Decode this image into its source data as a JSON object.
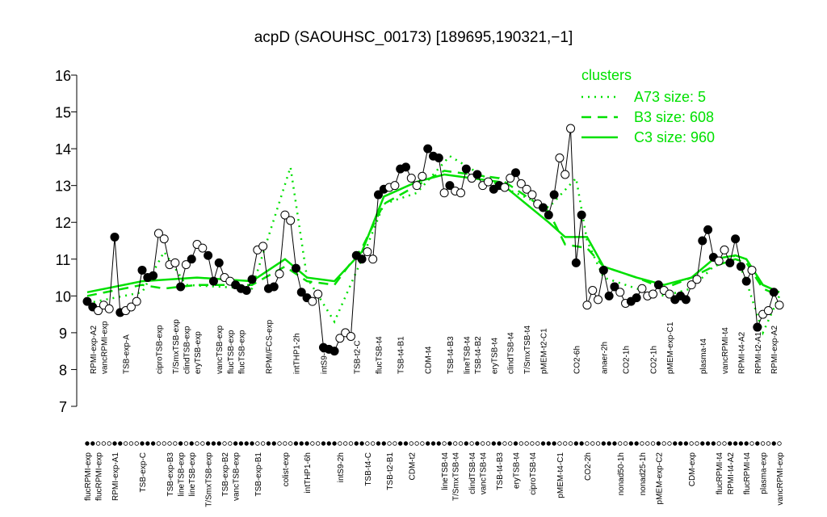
{
  "chart_data": {
    "type": "line",
    "title": "acpD (SAOUHSC_00173) [189695,190321,−1]",
    "categories": [
      "flucRPMI-exp",
      "RPMI-exp-A2",
      "flucRPMI-exp",
      "vancRPMI-exp",
      null,
      "RPMI-exp-A1",
      null,
      "TSB-exp-A",
      null,
      null,
      "TSB-exp-C",
      null,
      null,
      "ciproTSB-exp",
      null,
      "TSB-exp-B3",
      "T/SmxTSB-exp",
      "lineTSB-exp",
      "clindTSB-exp",
      "lineTSB-exp",
      "eryTSB-exp",
      null,
      "T/SmxTSB-exp",
      null,
      "vancTSB-exp",
      "TSB-exp-B2",
      "flucTSB-exp",
      "vancTSB-exp",
      "flucTSB-exp",
      null,
      null,
      "TSB-exp-B1",
      null,
      "RPMI/FCS-exp",
      null,
      null,
      "colist-exp",
      null,
      "intTHP1-2h",
      null,
      "intTHP1-6h",
      null,
      null,
      "intS9-6h",
      null,
      null,
      "intS9-2h",
      null,
      null,
      "TSB-t2-C",
      null,
      "TSB-t4-C",
      null,
      "flucTSB-t4",
      null,
      "TSB-t2-B1",
      null,
      "TSB-t4-B1",
      null,
      "CDM-t2",
      null,
      null,
      "CDM-t4",
      null,
      null,
      "lineTSB-t4",
      "TSB-t4-B3",
      "T/SmxTSB-t4",
      null,
      "lineTSB-t4",
      "clindTSB-t4",
      "TSB-t4-B2",
      "vancTSB-t4",
      null,
      "eryTSB-t4",
      "TSB-t4-B3",
      null,
      "clindTSB-t4",
      "eryTSB-t4",
      null,
      "T/SmxTSB-t4",
      "ciproTSB-t4",
      null,
      "pMEM-t2-C1",
      null,
      null,
      "pMEM-t4-C1",
      null,
      null,
      "CO2-6h",
      null,
      "CO2-2h",
      null,
      null,
      "anaer-2h",
      null,
      null,
      "nonad50-1h",
      "CO2-1h",
      null,
      null,
      "nonad25-1h",
      null,
      "CO2-1h",
      "pMEM-exp-C2",
      null,
      "pMEM-exp-C1",
      null,
      null,
      null,
      "CDM-exp",
      null,
      "plasma-t4",
      null,
      null,
      "flucRPMI-t4",
      "vancRPMI-t4",
      "RPMI-t4-A2",
      null,
      "RPMI-t4-A2",
      "flucRPMI-t4",
      null,
      "RPMI-t2-A1",
      "plasma-exp",
      null,
      "RPMI-exp-A2",
      "vancRPMI-exp"
    ],
    "values": [
      9.85,
      9.7,
      9.6,
      9.75,
      9.65,
      11.6,
      9.55,
      9.6,
      9.7,
      9.85,
      10.7,
      10.5,
      10.55,
      11.7,
      11.55,
      10.85,
      10.9,
      10.25,
      10.85,
      11.0,
      11.4,
      11.3,
      11.1,
      10.4,
      10.9,
      10.5,
      10.4,
      10.3,
      10.2,
      10.15,
      10.45,
      11.25,
      11.35,
      10.2,
      10.25,
      10.6,
      12.2,
      12.05,
      10.75,
      10.1,
      9.95,
      9.85,
      10.05,
      8.6,
      8.55,
      8.5,
      8.85,
      9.0,
      8.9,
      11.1,
      11.0,
      11.2,
      11.0,
      12.75,
      12.9,
      12.95,
      13.0,
      13.45,
      13.5,
      13.2,
      13.0,
      13.25,
      14.0,
      13.8,
      13.75,
      12.8,
      13.0,
      12.85,
      12.8,
      13.45,
      13.2,
      13.3,
      13.0,
      13.1,
      12.9,
      13.0,
      12.95,
      13.2,
      13.35,
      13.05,
      12.9,
      12.75,
      12.5,
      12.4,
      12.2,
      12.75,
      13.75,
      13.3,
      14.55,
      10.9,
      12.2,
      9.75,
      10.15,
      9.9,
      10.7,
      10.0,
      10.25,
      10.1,
      9.8,
      9.85,
      9.95,
      10.2,
      10.0,
      10.05,
      10.3,
      10.15,
      10.05,
      9.9,
      10.0,
      9.9,
      10.3,
      10.45,
      11.5,
      11.8,
      11.05,
      10.95,
      11.25,
      10.9,
      11.55,
      10.8,
      10.4,
      10.7,
      9.15,
      9.5,
      9.6,
      10.1,
      9.75
    ],
    "filled": [
      true,
      true,
      false,
      false,
      false,
      true,
      true,
      false,
      false,
      false,
      true,
      true,
      true,
      false,
      false,
      false,
      false,
      true,
      false,
      true,
      false,
      false,
      true,
      true,
      true,
      false,
      false,
      true,
      true,
      true,
      true,
      false,
      false,
      true,
      true,
      false,
      false,
      false,
      true,
      true,
      true,
      false,
      false,
      true,
      true,
      true,
      false,
      false,
      false,
      true,
      true,
      false,
      false,
      true,
      true,
      false,
      false,
      true,
      true,
      false,
      false,
      false,
      true,
      true,
      true,
      false,
      true,
      false,
      false,
      true,
      false,
      true,
      false,
      false,
      true,
      true,
      false,
      false,
      true,
      false,
      false,
      false,
      false,
      true,
      true,
      true,
      false,
      false,
      false,
      true,
      true,
      false,
      false,
      false,
      true,
      true,
      true,
      false,
      false,
      true,
      true,
      false,
      false,
      false,
      true,
      false,
      false,
      true,
      true,
      true,
      false,
      false,
      true,
      true,
      true,
      false,
      false,
      true,
      true,
      true,
      true,
      false,
      true,
      false,
      false,
      true,
      false
    ],
    "ylim": [
      7,
      16
    ],
    "yticks": [
      7,
      8,
      9,
      10,
      11,
      12,
      13,
      14,
      15,
      16
    ],
    "legend_title": "clusters",
    "series": [
      {
        "name": "A73 size: 5",
        "color": "#00e000",
        "dash": "dotted",
        "x": [
          0,
          10,
          14,
          18,
          30,
          37,
          40,
          45,
          50,
          54,
          60,
          66,
          75,
          84,
          89,
          91,
          94,
          100,
          105,
          110,
          114,
          118,
          120,
          123,
          126
        ],
        "values": [
          9.8,
          10.1,
          11.2,
          10.3,
          10.2,
          13.5,
          10.5,
          9.3,
          11.0,
          12.5,
          12.8,
          13.8,
          13.0,
          12.4,
          13.2,
          11.5,
          10.5,
          10.2,
          10.0,
          10.2,
          10.8,
          11.1,
          10.4,
          9.0,
          10.0
        ]
      },
      {
        "name": "B3 size: 608",
        "color": "#00e000",
        "dash": "dashed",
        "x": [
          0,
          10,
          14,
          20,
          30,
          36,
          40,
          45,
          50,
          54,
          60,
          65,
          75,
          84,
          87,
          91,
          94,
          100,
          105,
          110,
          114,
          118,
          120,
          123,
          126
        ],
        "values": [
          10.0,
          10.3,
          10.2,
          10.3,
          10.3,
          10.8,
          10.4,
          10.3,
          11.3,
          12.5,
          13.0,
          13.4,
          13.2,
          12.3,
          11.4,
          11.3,
          10.8,
          10.5,
          10.2,
          10.5,
          10.8,
          11.0,
          10.9,
          10.2,
          10.0
        ]
      },
      {
        "name": "C3 size: 960",
        "color": "#00e000",
        "dash": "solid",
        "x": [
          0,
          10,
          20,
          30,
          36,
          40,
          45,
          50,
          54,
          60,
          65,
          75,
          84,
          87,
          91,
          94,
          100,
          105,
          110,
          114,
          118,
          120,
          123,
          126
        ],
        "values": [
          10.1,
          10.4,
          10.5,
          10.4,
          11.0,
          10.5,
          10.4,
          11.2,
          12.7,
          13.1,
          13.3,
          13.1,
          12.0,
          11.6,
          11.6,
          10.8,
          10.5,
          10.3,
          10.5,
          11.0,
          11.1,
          11.0,
          10.3,
          10.1
        ]
      }
    ]
  }
}
